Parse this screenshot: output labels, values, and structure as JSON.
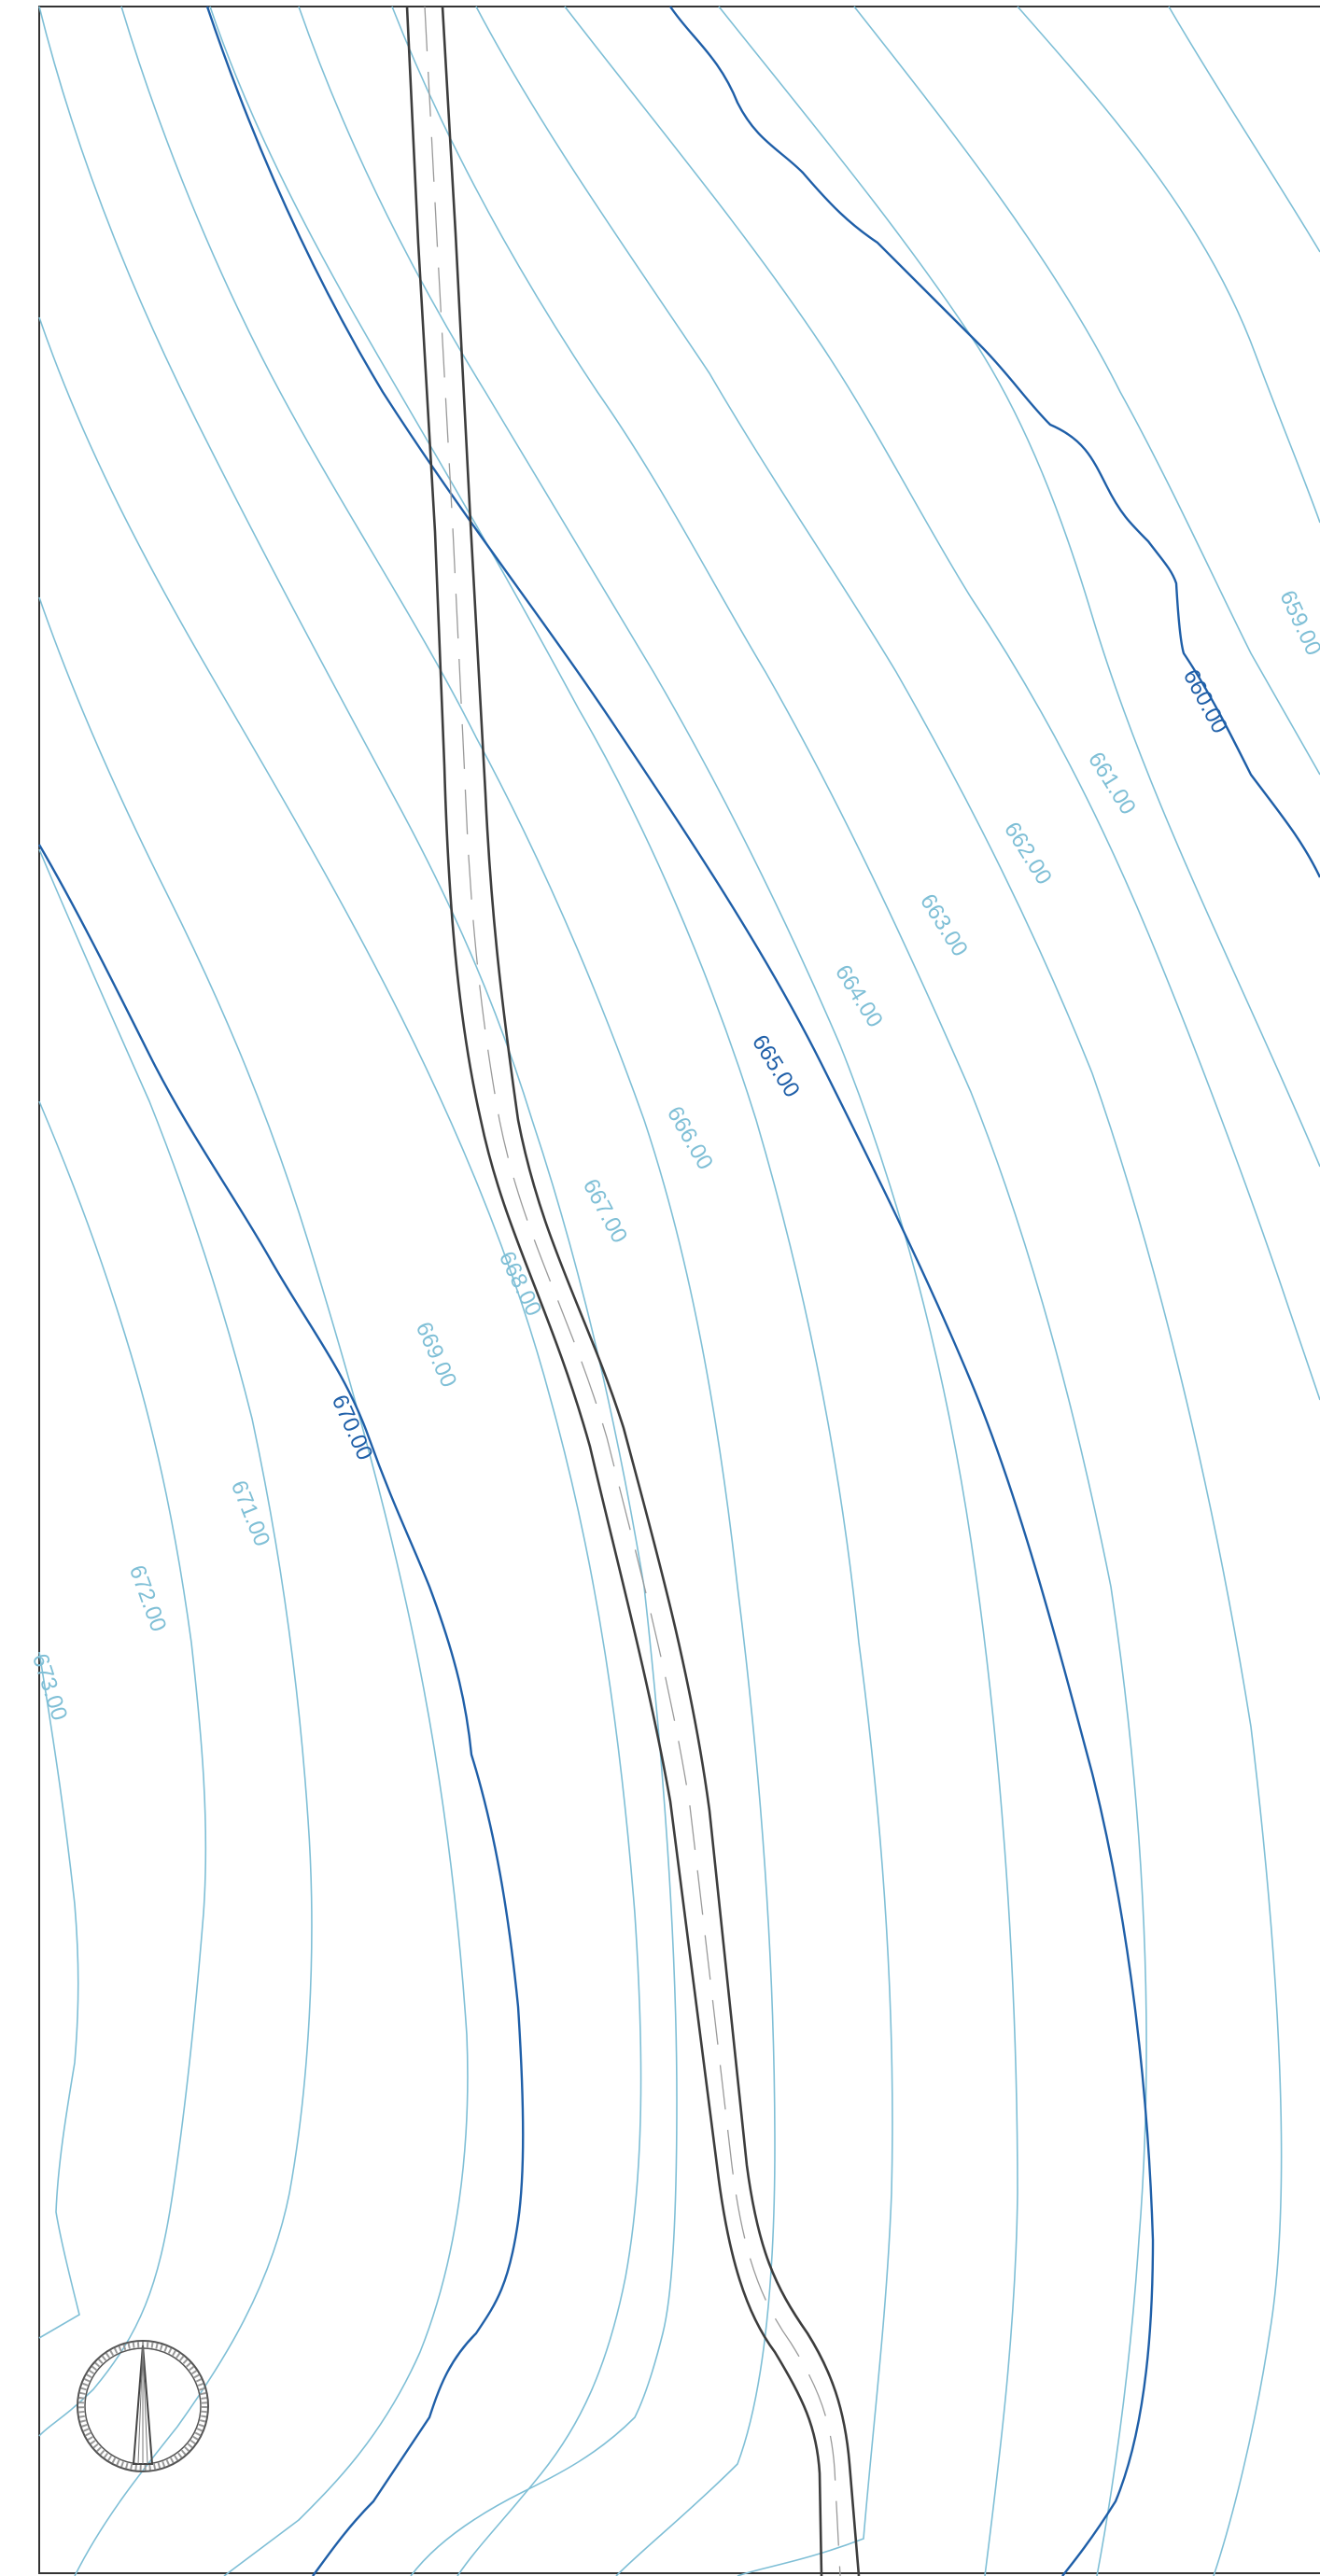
{
  "colors": {
    "minor_contour": "#7fbfd6",
    "major_contour": "#1f5fa8",
    "road_edge": "#3d3d3d",
    "road_centerline": "#9a9a9a",
    "frame": "#333333",
    "background": "#ffffff"
  },
  "map": {
    "contour_interval": 1,
    "major_contour_interval": 5,
    "contour_labels": [
      {
        "name": "contour-label-659",
        "text": "659.00",
        "major": false
      },
      {
        "name": "contour-label-660",
        "text": "660.00",
        "major": true
      },
      {
        "name": "contour-label-661",
        "text": "661.00",
        "major": false
      },
      {
        "name": "contour-label-662",
        "text": "662.00",
        "major": false
      },
      {
        "name": "contour-label-663",
        "text": "663.00",
        "major": false
      },
      {
        "name": "contour-label-664",
        "text": "664.00",
        "major": false
      },
      {
        "name": "contour-label-665",
        "text": "665.00",
        "major": true
      },
      {
        "name": "contour-label-666",
        "text": "666.00",
        "major": false
      },
      {
        "name": "contour-label-667",
        "text": "667.00",
        "major": false
      },
      {
        "name": "contour-label-668",
        "text": "668.00",
        "major": false
      },
      {
        "name": "contour-label-669",
        "text": "669.00",
        "major": false
      },
      {
        "name": "contour-label-670",
        "text": "670.00",
        "major": true
      },
      {
        "name": "contour-label-671",
        "text": "671.00",
        "major": false
      },
      {
        "name": "contour-label-672",
        "text": "672.00",
        "major": false
      },
      {
        "name": "contour-label-673",
        "text": "673.00",
        "major": false
      }
    ],
    "north_arrow_icon": "north-arrow-icon",
    "road": "two-lane road with dashed centerline"
  }
}
